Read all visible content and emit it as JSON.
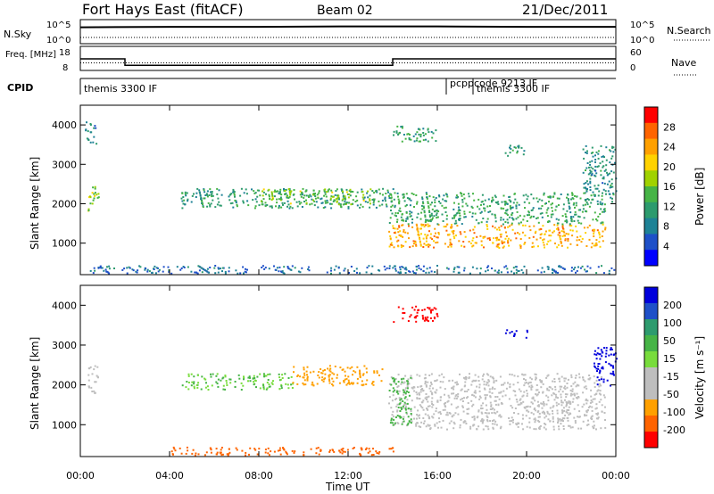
{
  "header": {
    "station": "Fort Hays East (fitACF)",
    "beam": "Beam 02",
    "date": "21/Dec/2011"
  },
  "chart_data": [
    {
      "type": "line",
      "name": "noise-panel",
      "left_label": "N.Sky",
      "right_label": "N.Search",
      "left_ticks": [
        "10^5",
        "10^0"
      ],
      "right_ticks": [
        "10^5",
        "10^0"
      ],
      "x": [
        "00:00",
        "04:00",
        "08:00",
        "12:00",
        "16:00",
        "20:00",
        "00:00"
      ],
      "values_log10": [
        3.4,
        3.5,
        3.5,
        3.6,
        3.6,
        3.5,
        3.5
      ],
      "ylim_log10": [
        0,
        5
      ],
      "search_level_log10": 1.3
    },
    {
      "type": "line",
      "name": "frequency-panel",
      "left_label": "Freq. [MHz]",
      "right_label": "Nave",
      "left_ticks": [
        "18",
        "8"
      ],
      "right_ticks": [
        "60",
        "0"
      ],
      "ylim_freq": [
        8,
        18
      ],
      "freq_steps": [
        {
          "t0": 0.0,
          "t1": 2.0,
          "mhz": 12.8
        },
        {
          "t0": 2.0,
          "t1": 14.0,
          "mhz": 10.1
        },
        {
          "t0": 14.0,
          "t1": 24.0,
          "mhz": 12.8
        }
      ],
      "nave_level": 19
    },
    {
      "type": "table",
      "name": "cpid-row",
      "label": "CPID",
      "entries": [
        {
          "t": 0.0,
          "text": "themis 3300 IF"
        },
        {
          "t": 16.4,
          "text": "pcppcode 9213 IF"
        },
        {
          "t": 17.6,
          "text": "themis 3300 IF"
        }
      ]
    },
    {
      "type": "heatmap",
      "name": "power-panel",
      "ylabel": "Slant Range [km]",
      "xlabel": "Time UT",
      "xlim_hours": [
        0,
        24
      ],
      "ylim_km": [
        200,
        4500
      ],
      "yticks": [
        1000,
        2000,
        3000,
        4000
      ],
      "colorbar_label": "Power [dB]",
      "colorbar_ticks": [
        "28",
        "24",
        "20",
        "16",
        "12",
        "8",
        "4"
      ],
      "colorbar_colors": [
        "#ff0000",
        "#ff6400",
        "#ffa000",
        "#ffd200",
        "#a0d200",
        "#46b446",
        "#2d9b6e",
        "#1e8296",
        "#1e50c8",
        "#0000ff"
      ],
      "regions": [
        {
          "t0": 0.3,
          "t1": 0.8,
          "r0": 1800,
          "r1": 2500,
          "level": 18
        },
        {
          "t0": 0.2,
          "t1": 0.7,
          "r0": 3500,
          "r1": 4100,
          "level": 8
        },
        {
          "t0": 4.5,
          "t1": 14.0,
          "r0": 1900,
          "r1": 2400,
          "level": 11
        },
        {
          "t0": 8.0,
          "t1": 13.0,
          "r0": 2000,
          "r1": 2400,
          "level": 16
        },
        {
          "t0": 13.8,
          "t1": 23.5,
          "r0": 900,
          "r1": 1500,
          "level": 24
        },
        {
          "t0": 13.8,
          "t1": 23.5,
          "r0": 1500,
          "r1": 2300,
          "level": 12
        },
        {
          "t0": 14.0,
          "t1": 16.0,
          "r0": 3600,
          "r1": 4000,
          "level": 12
        },
        {
          "t0": 19.0,
          "t1": 20.0,
          "r0": 3200,
          "r1": 3500,
          "level": 10
        },
        {
          "t0": 22.5,
          "t1": 24.0,
          "r0": 2000,
          "r1": 3500,
          "level": 9
        },
        {
          "t0": 0.0,
          "t1": 24.0,
          "r0": 250,
          "r1": 450,
          "level": 6
        }
      ]
    },
    {
      "type": "heatmap",
      "name": "velocity-panel",
      "ylabel": "Slant Range [km]",
      "xlabel": "Time UT",
      "xlim_hours": [
        0,
        24
      ],
      "ylim_km": [
        200,
        4500
      ],
      "yticks": [
        1000,
        2000,
        3000,
        4000
      ],
      "colorbar_label": "Velocity [m s⁻¹]",
      "colorbar_ticks": [
        "200",
        "100",
        "50",
        "15",
        "-15",
        "-50",
        "-100",
        "-200"
      ],
      "colorbar_colors": [
        "#0000dc",
        "#1e50c8",
        "#2d9b6e",
        "#46b446",
        "#78dc3c",
        "#bebebe",
        "#bebebe",
        "#ffa000",
        "#ff6400",
        "#ff0000"
      ],
      "regions": [
        {
          "t0": 0.3,
          "t1": 0.8,
          "r0": 1800,
          "r1": 2500,
          "level": 0
        },
        {
          "t0": 4.5,
          "t1": 9.5,
          "r0": 1900,
          "r1": 2300,
          "level": 30
        },
        {
          "t0": 9.5,
          "t1": 13.5,
          "r0": 2000,
          "r1": 2500,
          "level": -40
        },
        {
          "t0": 13.8,
          "t1": 23.5,
          "r0": 900,
          "r1": 2300,
          "level": 0
        },
        {
          "t0": 13.8,
          "t1": 14.8,
          "r0": 1000,
          "r1": 2200,
          "level": 40
        },
        {
          "t0": 14.0,
          "t1": 16.0,
          "r0": 3600,
          "r1": 4000,
          "level": -150
        },
        {
          "t0": 19.0,
          "t1": 20.0,
          "r0": 3200,
          "r1": 3400,
          "level": 180
        },
        {
          "t0": 23.0,
          "t1": 24.0,
          "r0": 2000,
          "r1": 3000,
          "level": 200
        },
        {
          "t0": 4.0,
          "t1": 14.0,
          "r0": 250,
          "r1": 450,
          "level": -60
        }
      ]
    }
  ]
}
